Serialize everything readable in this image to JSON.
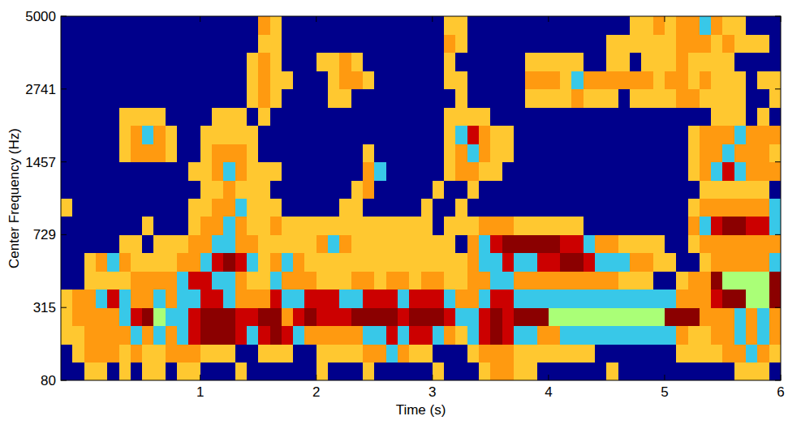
{
  "chart_data": {
    "type": "heatmap",
    "x_label": "Time (s)",
    "y_label": "Center Frequency (Hz)",
    "xlim": [
      -0.2,
      6
    ],
    "ylim": [
      80,
      5000
    ],
    "xticks": [
      1,
      2,
      3,
      4,
      5,
      6
    ],
    "yticks": [
      80,
      315,
      729,
      1457,
      2741,
      5000
    ],
    "colors": [
      "#00008b",
      "#ffc830",
      "#ff9a10",
      "#38c8e8",
      "#cc0000",
      "#8b0000",
      "#aaff77"
    ],
    "x": [
      -0.15,
      -0.05,
      0.05,
      0.15,
      0.25,
      0.35,
      0.45,
      0.55,
      0.65,
      0.75,
      0.85,
      0.95,
      1.05,
      1.15,
      1.25,
      1.35,
      1.45,
      1.55,
      1.65,
      1.75,
      1.85,
      1.95,
      2.05,
      2.15,
      2.25,
      2.35,
      2.45,
      2.55,
      2.65,
      2.75,
      2.85,
      2.95,
      3.05,
      3.15,
      3.25,
      3.35,
      3.45,
      3.55,
      3.65,
      3.75,
      3.85,
      3.95,
      4.05,
      4.15,
      4.25,
      4.35,
      4.45,
      4.55,
      4.65,
      4.75,
      4.85,
      4.95,
      5.05,
      5.15,
      5.25,
      5.35,
      5.45,
      5.55,
      5.65,
      5.75,
      5.85,
      5.95
    ],
    "y": [
      103,
      153,
      211,
      278,
      355,
      443,
      546,
      663,
      799,
      955,
      1135,
      1343,
      1581,
      1856,
      2173,
      2538,
      2959,
      3443,
      4001,
      4644
    ],
    "cells": [
      [
        0,
        0,
        1,
        1,
        0,
        1,
        0,
        1,
        1,
        0,
        1,
        1,
        0,
        0,
        0,
        1,
        0,
        0,
        0,
        0,
        0,
        0,
        1,
        0,
        0,
        0,
        1,
        0,
        0,
        0,
        0,
        0,
        1,
        0,
        0,
        0,
        1,
        2,
        2,
        1,
        1,
        0,
        0,
        0,
        0,
        0,
        0,
        1,
        0,
        0,
        0,
        0,
        0,
        0,
        0,
        0,
        0,
        0,
        1,
        1,
        1,
        0
      ],
      [
        0,
        1,
        2,
        2,
        2,
        1,
        2,
        1,
        1,
        2,
        2,
        2,
        1,
        1,
        1,
        0,
        0,
        1,
        1,
        1,
        0,
        0,
        1,
        1,
        1,
        1,
        2,
        2,
        3,
        2,
        1,
        1,
        0,
        0,
        0,
        1,
        2,
        2,
        2,
        1,
        1,
        1,
        1,
        1,
        1,
        1,
        0,
        0,
        0,
        0,
        0,
        0,
        0,
        1,
        1,
        1,
        1,
        2,
        2,
        3,
        2,
        1
      ],
      [
        1,
        1,
        2,
        2,
        2,
        2,
        3,
        2,
        3,
        2,
        3,
        4,
        5,
        5,
        5,
        4,
        3,
        4,
        5,
        4,
        3,
        2,
        2,
        2,
        2,
        2,
        3,
        3,
        4,
        3,
        4,
        4,
        3,
        2,
        1,
        3,
        4,
        5,
        4,
        3,
        3,
        2,
        2,
        3,
        3,
        3,
        3,
        3,
        3,
        3,
        3,
        3,
        3,
        2,
        1,
        1,
        2,
        2,
        3,
        2,
        3,
        2
      ],
      [
        1,
        2,
        2,
        2,
        2,
        3,
        4,
        5,
        6,
        3,
        3,
        4,
        5,
        5,
        5,
        4,
        4,
        5,
        5,
        2,
        4,
        5,
        4,
        4,
        4,
        5,
        5,
        5,
        5,
        4,
        5,
        5,
        5,
        4,
        3,
        3,
        4,
        5,
        4,
        5,
        5,
        5,
        6,
        6,
        6,
        6,
        6,
        6,
        6,
        6,
        6,
        6,
        5,
        5,
        5,
        2,
        2,
        2,
        3,
        2,
        3,
        2
      ],
      [
        1,
        2,
        2,
        3,
        4,
        3,
        2,
        2,
        3,
        2,
        3,
        3,
        4,
        4,
        3,
        2,
        2,
        2,
        4,
        3,
        3,
        4,
        4,
        4,
        3,
        3,
        4,
        4,
        4,
        3,
        4,
        4,
        4,
        3,
        2,
        2,
        3,
        4,
        4,
        3,
        3,
        3,
        3,
        3,
        3,
        3,
        3,
        3,
        3,
        3,
        3,
        3,
        3,
        2,
        2,
        2,
        4,
        5,
        5,
        6,
        6,
        5
      ],
      [
        0,
        0,
        1,
        1,
        1,
        1,
        2,
        2,
        2,
        2,
        3,
        4,
        4,
        3,
        3,
        2,
        1,
        1,
        3,
        2,
        2,
        2,
        1,
        1,
        1,
        2,
        2,
        1,
        2,
        2,
        1,
        2,
        2,
        1,
        1,
        2,
        2,
        3,
        3,
        2,
        2,
        2,
        2,
        2,
        2,
        2,
        2,
        2,
        1,
        1,
        1,
        0,
        0,
        1,
        2,
        2,
        5,
        6,
        6,
        6,
        6,
        5
      ],
      [
        0,
        0,
        1,
        2,
        3,
        2,
        1,
        1,
        1,
        1,
        2,
        2,
        3,
        4,
        5,
        4,
        3,
        1,
        2,
        3,
        2,
        1,
        1,
        1,
        1,
        1,
        1,
        1,
        1,
        1,
        1,
        1,
        1,
        1,
        1,
        2,
        3,
        3,
        4,
        3,
        3,
        4,
        4,
        5,
        5,
        4,
        3,
        3,
        3,
        2,
        2,
        1,
        1,
        0,
        0,
        1,
        2,
        2,
        2,
        2,
        2,
        3
      ],
      [
        0,
        0,
        0,
        0,
        0,
        1,
        1,
        0,
        1,
        1,
        1,
        2,
        2,
        3,
        3,
        2,
        2,
        1,
        1,
        1,
        1,
        1,
        2,
        3,
        2,
        1,
        1,
        1,
        1,
        1,
        1,
        1,
        1,
        1,
        0,
        2,
        3,
        4,
        5,
        5,
        5,
        5,
        5,
        4,
        4,
        3,
        2,
        2,
        1,
        1,
        1,
        1,
        0,
        0,
        1,
        2,
        2,
        2,
        2,
        2,
        2,
        2
      ],
      [
        0,
        0,
        0,
        0,
        0,
        0,
        0,
        1,
        0,
        0,
        0,
        1,
        2,
        2,
        3,
        2,
        1,
        1,
        2,
        1,
        1,
        1,
        1,
        1,
        1,
        1,
        1,
        1,
        1,
        1,
        1,
        1,
        0,
        1,
        1,
        1,
        2,
        2,
        2,
        1,
        1,
        1,
        1,
        1,
        1,
        0,
        0,
        0,
        0,
        0,
        0,
        0,
        0,
        0,
        2,
        3,
        4,
        5,
        5,
        4,
        4,
        3
      ],
      [
        1,
        0,
        0,
        0,
        0,
        0,
        0,
        0,
        0,
        0,
        0,
        1,
        1,
        2,
        2,
        3,
        1,
        1,
        1,
        0,
        0,
        0,
        0,
        0,
        1,
        1,
        0,
        0,
        0,
        0,
        0,
        1,
        0,
        0,
        1,
        0,
        0,
        0,
        0,
        0,
        0,
        0,
        0,
        0,
        0,
        0,
        0,
        0,
        0,
        0,
        0,
        0,
        0,
        0,
        1,
        2,
        2,
        2,
        2,
        2,
        2,
        3
      ],
      [
        0,
        0,
        0,
        0,
        0,
        0,
        0,
        0,
        0,
        0,
        0,
        0,
        1,
        1,
        2,
        1,
        1,
        1,
        0,
        0,
        0,
        0,
        0,
        0,
        0,
        1,
        2,
        0,
        0,
        0,
        0,
        0,
        1,
        0,
        0,
        1,
        0,
        0,
        0,
        0,
        0,
        0,
        0,
        0,
        0,
        0,
        0,
        0,
        0,
        0,
        0,
        0,
        0,
        0,
        0,
        1,
        1,
        1,
        1,
        1,
        1,
        0
      ],
      [
        0,
        0,
        0,
        0,
        0,
        0,
        0,
        0,
        0,
        0,
        0,
        1,
        1,
        2,
        3,
        2,
        1,
        1,
        1,
        0,
        0,
        0,
        0,
        0,
        0,
        0,
        2,
        3,
        0,
        0,
        0,
        0,
        0,
        1,
        2,
        2,
        1,
        1,
        0,
        0,
        0,
        0,
        0,
        0,
        0,
        0,
        0,
        0,
        0,
        0,
        0,
        0,
        0,
        0,
        1,
        2,
        3,
        4,
        3,
        2,
        2,
        2
      ],
      [
        0,
        0,
        0,
        0,
        0,
        1,
        2,
        2,
        2,
        1,
        0,
        0,
        1,
        2,
        2,
        2,
        1,
        0,
        0,
        0,
        0,
        0,
        0,
        0,
        0,
        0,
        1,
        0,
        0,
        0,
        0,
        0,
        0,
        1,
        2,
        3,
        2,
        1,
        1,
        0,
        0,
        0,
        0,
        0,
        0,
        0,
        0,
        0,
        0,
        0,
        0,
        0,
        0,
        0,
        1,
        2,
        2,
        3,
        2,
        2,
        2,
        1
      ],
      [
        0,
        0,
        0,
        0,
        0,
        1,
        2,
        3,
        2,
        1,
        0,
        0,
        1,
        1,
        1,
        1,
        1,
        0,
        0,
        0,
        0,
        0,
        0,
        0,
        0,
        0,
        0,
        0,
        0,
        0,
        0,
        0,
        0,
        1,
        3,
        4,
        2,
        1,
        1,
        0,
        0,
        0,
        0,
        0,
        0,
        0,
        0,
        0,
        0,
        0,
        0,
        0,
        0,
        0,
        1,
        2,
        2,
        2,
        3,
        2,
        2,
        2
      ],
      [
        0,
        0,
        0,
        0,
        0,
        1,
        1,
        1,
        1,
        0,
        0,
        0,
        0,
        1,
        1,
        1,
        0,
        1,
        0,
        0,
        0,
        0,
        0,
        0,
        0,
        0,
        0,
        0,
        0,
        0,
        0,
        0,
        0,
        1,
        1,
        1,
        1,
        0,
        0,
        0,
        0,
        0,
        0,
        0,
        0,
        0,
        0,
        0,
        0,
        0,
        0,
        0,
        0,
        0,
        0,
        0,
        1,
        1,
        1,
        0,
        1,
        0
      ],
      [
        0,
        0,
        0,
        0,
        0,
        0,
        0,
        0,
        0,
        0,
        0,
        0,
        0,
        0,
        0,
        0,
        1,
        2,
        1,
        0,
        0,
        0,
        0,
        1,
        1,
        0,
        0,
        0,
        0,
        0,
        0,
        0,
        0,
        0,
        1,
        0,
        0,
        0,
        0,
        0,
        1,
        1,
        1,
        1,
        2,
        1,
        1,
        1,
        0,
        1,
        1,
        1,
        1,
        2,
        2,
        1,
        1,
        1,
        1,
        0,
        0,
        1
      ],
      [
        0,
        0,
        0,
        0,
        0,
        0,
        0,
        0,
        0,
        0,
        0,
        0,
        0,
        0,
        0,
        0,
        1,
        2,
        1,
        1,
        0,
        0,
        0,
        1,
        2,
        2,
        1,
        0,
        0,
        0,
        0,
        0,
        0,
        1,
        1,
        0,
        0,
        0,
        0,
        0,
        2,
        2,
        2,
        1,
        3,
        2,
        2,
        2,
        2,
        2,
        2,
        1,
        2,
        2,
        1,
        2,
        1,
        1,
        1,
        0,
        1,
        1
      ],
      [
        0,
        0,
        0,
        0,
        0,
        0,
        0,
        0,
        0,
        0,
        0,
        0,
        0,
        0,
        0,
        0,
        1,
        2,
        1,
        0,
        0,
        0,
        1,
        1,
        2,
        1,
        0,
        0,
        0,
        0,
        0,
        0,
        0,
        1,
        0,
        0,
        0,
        0,
        0,
        0,
        1,
        1,
        1,
        1,
        1,
        0,
        0,
        1,
        1,
        0,
        1,
        1,
        1,
        2,
        1,
        1,
        1,
        1,
        0,
        0,
        0,
        0
      ],
      [
        0,
        0,
        0,
        0,
        0,
        0,
        0,
        0,
        0,
        0,
        0,
        0,
        0,
        0,
        0,
        0,
        0,
        1,
        1,
        0,
        0,
        0,
        0,
        0,
        0,
        0,
        0,
        0,
        0,
        0,
        0,
        0,
        0,
        2,
        1,
        0,
        0,
        0,
        0,
        0,
        0,
        0,
        0,
        0,
        0,
        0,
        0,
        1,
        1,
        1,
        1,
        1,
        1,
        2,
        2,
        2,
        1,
        2,
        1,
        1,
        1,
        0
      ],
      [
        0,
        0,
        0,
        0,
        0,
        0,
        0,
        0,
        0,
        0,
        0,
        0,
        0,
        0,
        0,
        0,
        0,
        2,
        1,
        0,
        0,
        0,
        0,
        0,
        0,
        0,
        0,
        0,
        0,
        0,
        0,
        0,
        0,
        1,
        1,
        0,
        0,
        0,
        0,
        0,
        0,
        0,
        0,
        0,
        0,
        0,
        0,
        0,
        0,
        1,
        1,
        2,
        1,
        2,
        2,
        3,
        2,
        1,
        1,
        0,
        0,
        0
      ]
    ]
  }
}
